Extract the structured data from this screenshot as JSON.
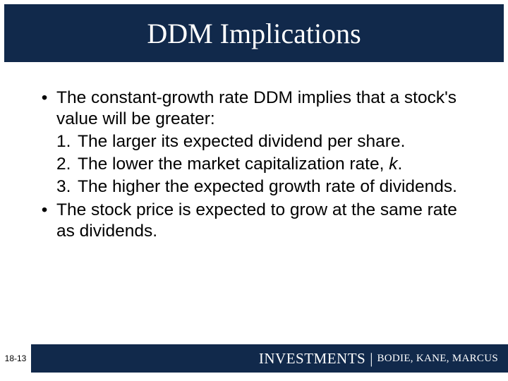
{
  "colors": {
    "header_bg": "#11294b",
    "header_text": "#ffffff",
    "body_bg": "#ffffff",
    "body_text": "#000000",
    "footer_bg": "#11294b",
    "footer_text": "#ffffff"
  },
  "typography": {
    "title_family": "Georgia, serif",
    "title_size_pt": 30,
    "body_family": "Arial, sans-serif",
    "body_size_pt": 18,
    "footer_brand_size_pt": 16,
    "footer_authors_size_pt": 11
  },
  "title": "DDM Implications",
  "bullets": [
    {
      "text_before": "The constant-growth rate DDM implies that a stock's value will be greater:",
      "numbered": [
        {
          "n": "1.",
          "text": "The larger its expected dividend per share."
        },
        {
          "n": "2.",
          "text_html": "The lower the market capitalization rate, <span class=\"italic\">k</span>."
        },
        {
          "n": "3.",
          "text": "The higher the expected growth rate of dividends."
        }
      ]
    },
    {
      "text_before": "The stock price is expected to grow at the same rate as dividends."
    }
  ],
  "footer": {
    "page_label": "18-13",
    "brand": "INVESTMENTS",
    "separator": "|",
    "authors": "BODIE, KANE, MARCUS"
  }
}
